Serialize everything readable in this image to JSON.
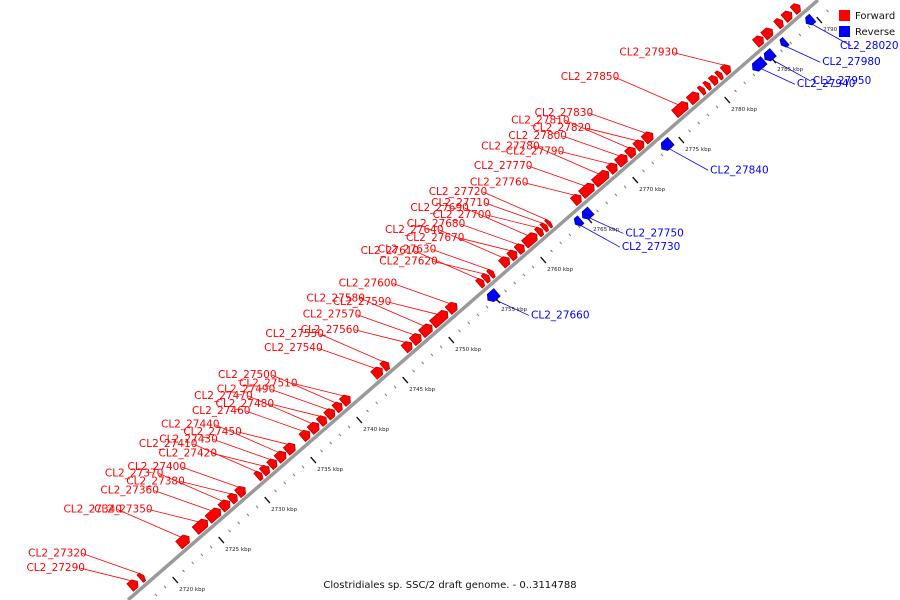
{
  "title": "Clostridiales sp. SSC/2 draft genome. - 0..3114788",
  "legend": [
    {
      "label": "Forward",
      "color": "#ff0000"
    },
    {
      "label": "Reverse",
      "color": "#0000ff"
    }
  ],
  "colors": {
    "forward": "#ff0000",
    "reverse": "#0000ff",
    "backbone": "#9a9a9a",
    "leader_fwd": "#ff0000",
    "leader_rev": "#0000ff"
  },
  "axis": {
    "unit": "kbp",
    "start_kbp": 2716,
    "end_kbp": 2791,
    "ticks": [
      {
        "kbp": 2720,
        "label": "2720 kbp"
      },
      {
        "kbp": 2725,
        "label": "2725 kbp"
      },
      {
        "kbp": 2730,
        "label": "2730 kbp"
      },
      {
        "kbp": 2735,
        "label": "2735 kbp"
      },
      {
        "kbp": 2740,
        "label": "2740 kbp"
      },
      {
        "kbp": 2745,
        "label": "2745 kbp"
      },
      {
        "kbp": 2750,
        "label": "2750 kbp"
      },
      {
        "kbp": 2755,
        "label": "2755 kbp"
      },
      {
        "kbp": 2760,
        "label": "2760 kbp"
      },
      {
        "kbp": 2765,
        "label": "2765 kbp"
      },
      {
        "kbp": 2770,
        "label": "2770 kbp"
      },
      {
        "kbp": 2775,
        "label": "2775 kbp"
      },
      {
        "kbp": 2780,
        "label": "2780 kbp"
      },
      {
        "kbp": 2785,
        "label": "2785 kbp"
      },
      {
        "kbp": 2790,
        "label": "2790 kbp"
      }
    ]
  },
  "genes": [
    {
      "name": "CL2_27290",
      "strand": "forward",
      "start_kbp": 2716.8,
      "end_kbp": 2717.6
    },
    {
      "name": "CL2_27320",
      "strand": "forward",
      "start_kbp": 2717.9,
      "end_kbp": 2718.3
    },
    {
      "name": "CL2_27340",
      "strand": "forward",
      "start_kbp": 2722.1,
      "end_kbp": 2723.2
    },
    {
      "name": "CL2_27350",
      "strand": "forward",
      "start_kbp": 2723.9,
      "end_kbp": 2725.2
    },
    {
      "name": "CL2_27360",
      "strand": "forward",
      "start_kbp": 2725.3,
      "end_kbp": 2726.6
    },
    {
      "name": "CL2_27370",
      "strand": "forward",
      "start_kbp": 2726.7,
      "end_kbp": 2727.6
    },
    {
      "name": "CL2_27380",
      "strand": "forward",
      "start_kbp": 2727.7,
      "end_kbp": 2728.4
    },
    {
      "name": "CL2_27400",
      "strand": "forward",
      "start_kbp": 2728.5,
      "end_kbp": 2729.3
    },
    {
      "name": "CL2_27410",
      "strand": "forward",
      "start_kbp": 2730.6,
      "end_kbp": 2731.1
    },
    {
      "name": "CL2_27420",
      "strand": "forward",
      "start_kbp": 2731.2,
      "end_kbp": 2731.9
    },
    {
      "name": "CL2_27430",
      "strand": "forward",
      "start_kbp": 2732.0,
      "end_kbp": 2732.7
    },
    {
      "name": "CL2_27440",
      "strand": "forward",
      "start_kbp": 2732.8,
      "end_kbp": 2733.7
    },
    {
      "name": "CL2_27450",
      "strand": "forward",
      "start_kbp": 2733.8,
      "end_kbp": 2734.7
    },
    {
      "name": "CL2_27460",
      "strand": "forward",
      "start_kbp": 2735.5,
      "end_kbp": 2736.3
    },
    {
      "name": "CL2_27470",
      "strand": "forward",
      "start_kbp": 2736.4,
      "end_kbp": 2737.3
    },
    {
      "name": "CL2_27480",
      "strand": "forward",
      "start_kbp": 2737.4,
      "end_kbp": 2738.1
    },
    {
      "name": "CL2_27490",
      "strand": "forward",
      "start_kbp": 2738.2,
      "end_kbp": 2739.0
    },
    {
      "name": "CL2_27500",
      "strand": "forward",
      "start_kbp": 2739.1,
      "end_kbp": 2739.8
    },
    {
      "name": "CL2_27510",
      "strand": "forward",
      "start_kbp": 2739.9,
      "end_kbp": 2740.7
    },
    {
      "name": "CL2_27540",
      "strand": "forward",
      "start_kbp": 2743.3,
      "end_kbp": 2744.2
    },
    {
      "name": "CL2_27550",
      "strand": "forward",
      "start_kbp": 2744.3,
      "end_kbp": 2744.9
    },
    {
      "name": "CL2_27560",
      "strand": "forward",
      "start_kbp": 2746.6,
      "end_kbp": 2747.4
    },
    {
      "name": "CL2_27570",
      "strand": "forward",
      "start_kbp": 2747.5,
      "end_kbp": 2748.4
    },
    {
      "name": "CL2_27580",
      "strand": "forward",
      "start_kbp": 2748.5,
      "end_kbp": 2749.6
    },
    {
      "name": "CL2_27590",
      "strand": "forward",
      "start_kbp": 2749.7,
      "end_kbp": 2751.3
    },
    {
      "name": "CL2_27600",
      "strand": "forward",
      "start_kbp": 2751.4,
      "end_kbp": 2752.3
    },
    {
      "name": "CL2_27610",
      "strand": "forward",
      "start_kbp": 2754.7,
      "end_kbp": 2755.2
    },
    {
      "name": "CL2_27620",
      "strand": "forward",
      "start_kbp": 2755.3,
      "end_kbp": 2755.8
    },
    {
      "name": "CL2_27630",
      "strand": "forward",
      "start_kbp": 2755.9,
      "end_kbp": 2756.3
    },
    {
      "name": "CL2_27640",
      "strand": "forward",
      "start_kbp": 2757.2,
      "end_kbp": 2758.0
    },
    {
      "name": "CL2_27660",
      "strand": "reverse",
      "start_kbp": 2754.4,
      "end_kbp": 2755.4
    },
    {
      "name": "CL2_27670",
      "strand": "forward",
      "start_kbp": 2758.1,
      "end_kbp": 2758.8
    },
    {
      "name": "CL2_27680",
      "strand": "forward",
      "start_kbp": 2758.9,
      "end_kbp": 2759.6
    },
    {
      "name": "CL2_27690",
      "strand": "forward",
      "start_kbp": 2759.7,
      "end_kbp": 2761.0
    },
    {
      "name": "CL2_27700",
      "strand": "forward",
      "start_kbp": 2761.1,
      "end_kbp": 2761.6
    },
    {
      "name": "CL2_27710",
      "strand": "forward",
      "start_kbp": 2761.7,
      "end_kbp": 2762.1
    },
    {
      "name": "CL2_27720",
      "strand": "forward",
      "start_kbp": 2762.2,
      "end_kbp": 2762.5
    },
    {
      "name": "CL2_27730",
      "strand": "reverse",
      "start_kbp": 2763.9,
      "end_kbp": 2764.5
    },
    {
      "name": "CL2_27750",
      "strand": "reverse",
      "start_kbp": 2764.7,
      "end_kbp": 2765.6
    },
    {
      "name": "CL2_27760",
      "strand": "forward",
      "start_kbp": 2765.0,
      "end_kbp": 2765.8
    },
    {
      "name": "CL2_27770",
      "strand": "forward",
      "start_kbp": 2765.9,
      "end_kbp": 2767.2
    },
    {
      "name": "CL2_27780",
      "strand": "forward",
      "start_kbp": 2767.3,
      "end_kbp": 2768.8
    },
    {
      "name": "CL2_27790",
      "strand": "forward",
      "start_kbp": 2768.9,
      "end_kbp": 2769.7
    },
    {
      "name": "CL2_27800",
      "strand": "forward",
      "start_kbp": 2769.8,
      "end_kbp": 2770.8
    },
    {
      "name": "CL2_27810",
      "strand": "forward",
      "start_kbp": 2770.9,
      "end_kbp": 2771.7
    },
    {
      "name": "CL2_27820",
      "strand": "forward",
      "start_kbp": 2771.8,
      "end_kbp": 2772.6
    },
    {
      "name": "CL2_27830",
      "strand": "forward",
      "start_kbp": 2772.7,
      "end_kbp": 2773.6
    },
    {
      "name": "CL2_27840",
      "strand": "reverse",
      "start_kbp": 2773.3,
      "end_kbp": 2774.3
    },
    {
      "name": "CL2_27850",
      "strand": "forward",
      "start_kbp": 2776.0,
      "end_kbp": 2777.4
    },
    {
      "name": "CL2_27930",
      "strand": "forward",
      "start_kbp": 2781.3,
      "end_kbp": 2782.0
    },
    {
      "name": "CL2_27940",
      "strand": "reverse",
      "start_kbp": 2783.2,
      "end_kbp": 2784.4
    },
    {
      "name": "CL2_27950",
      "strand": "reverse",
      "start_kbp": 2784.5,
      "end_kbp": 2785.4
    },
    {
      "name": "CL2_27980",
      "strand": "reverse",
      "start_kbp": 2786.3,
      "end_kbp": 2786.8
    },
    {
      "name": "CL2_28020",
      "strand": "reverse",
      "start_kbp": 2789.0,
      "end_kbp": 2789.7
    }
  ],
  "unlabeled_genes": [
    {
      "strand": "forward",
      "start_kbp": 2777.6,
      "end_kbp": 2778.6
    },
    {
      "strand": "forward",
      "start_kbp": 2778.8,
      "end_kbp": 2779.2
    },
    {
      "strand": "forward",
      "start_kbp": 2779.4,
      "end_kbp": 2779.8
    },
    {
      "strand": "forward",
      "start_kbp": 2780.0,
      "end_kbp": 2780.6
    },
    {
      "strand": "forward",
      "start_kbp": 2780.7,
      "end_kbp": 2781.1
    },
    {
      "strand": "forward",
      "start_kbp": 2784.8,
      "end_kbp": 2785.6
    },
    {
      "strand": "forward",
      "start_kbp": 2785.7,
      "end_kbp": 2786.6
    },
    {
      "strand": "forward",
      "start_kbp": 2787.1,
      "end_kbp": 2787.7
    },
    {
      "strand": "forward",
      "start_kbp": 2787.9,
      "end_kbp": 2788.7
    },
    {
      "strand": "forward",
      "start_kbp": 2788.9,
      "end_kbp": 2789.6
    }
  ]
}
